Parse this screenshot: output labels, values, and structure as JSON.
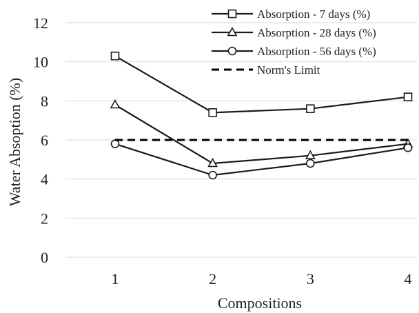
{
  "chart_data": {
    "type": "line",
    "x": [
      1,
      2,
      3,
      4
    ],
    "categories": [
      "1",
      "2",
      "3",
      "4"
    ],
    "xlabel": "Compositions",
    "ylabel": "Water Absoption (%)",
    "ylim": [
      0,
      12
    ],
    "yticks": [
      0,
      2,
      4,
      6,
      8,
      10,
      12
    ],
    "grid": "horizontal",
    "legend_position": "top-right",
    "series": [
      {
        "name": "Absorption - 7 days (%)",
        "values": [
          10.3,
          7.4,
          7.6,
          8.2
        ],
        "marker": "square",
        "style": "solid"
      },
      {
        "name": "Absorption - 28 days (%)",
        "values": [
          7.8,
          4.8,
          5.2,
          5.8
        ],
        "marker": "triangle",
        "style": "solid"
      },
      {
        "name": "Absorption - 56 days (%)",
        "values": [
          5.8,
          4.2,
          4.8,
          5.6
        ],
        "marker": "circle",
        "style": "solid"
      },
      {
        "name": "Norm's Limit",
        "values": [
          6,
          6,
          6,
          6
        ],
        "marker": "none",
        "style": "dashed"
      }
    ],
    "colors": {
      "series": "#1a1a1a",
      "limit": "#000000",
      "grid": "#d9d9d9",
      "marker_fill": "#ffffff"
    }
  }
}
